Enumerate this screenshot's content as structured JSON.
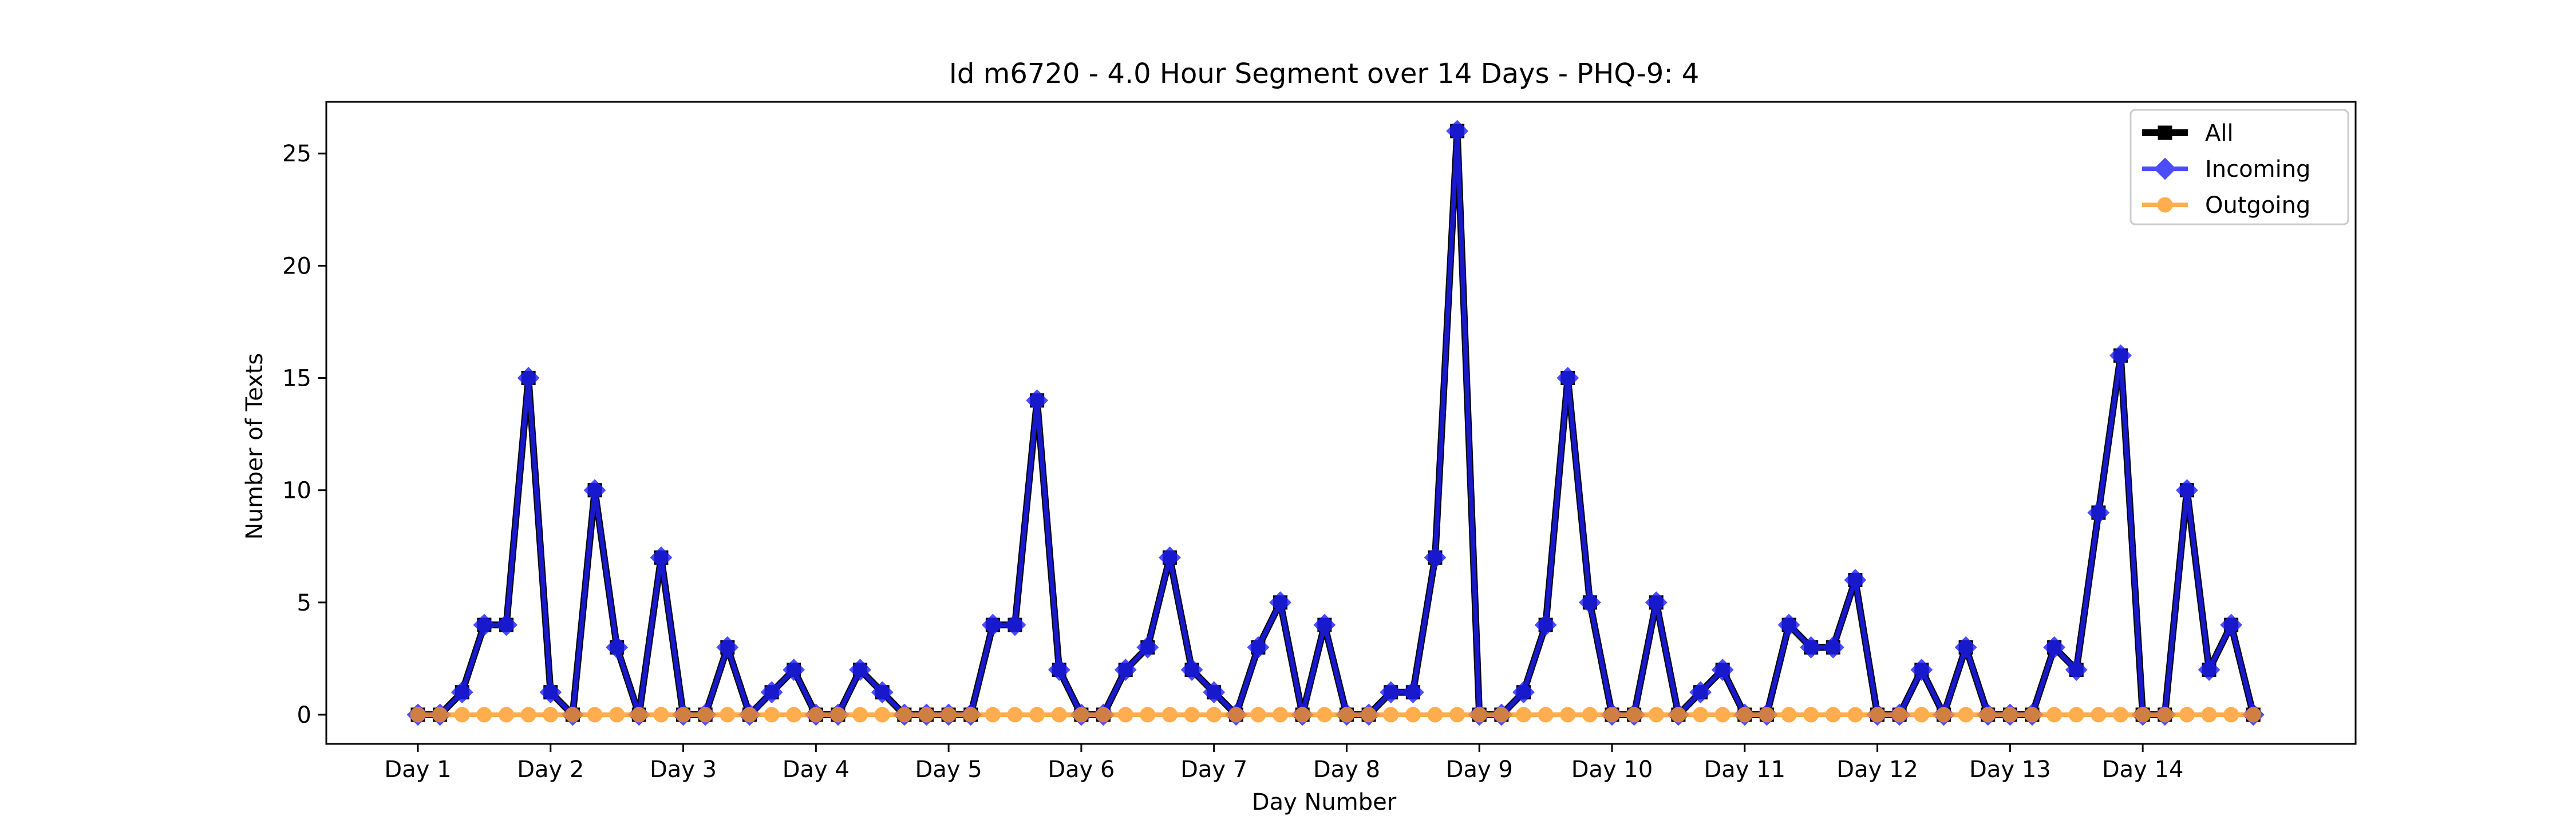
{
  "chart_data": {
    "type": "line",
    "title": "Id m6720 - 4.0 Hour Segment over 14 Days - PHQ-9: 4",
    "xlabel": "Day Number",
    "ylabel": "Number of Texts",
    "x_tick_labels": [
      "Day 1",
      "Day 2",
      "Day 3",
      "Day 4",
      "Day 5",
      "Day 6",
      "Day 7",
      "Day 8",
      "Day 9",
      "Day 10",
      "Day 11",
      "Day 12",
      "Day 13",
      "Day 14"
    ],
    "segments_per_day": 6,
    "ylim": [
      -1.3,
      27.3
    ],
    "yticks": [
      0,
      5,
      10,
      15,
      20,
      25
    ],
    "grid": false,
    "legend_position": "top-right",
    "series": [
      {
        "name": "All",
        "color": "#000000",
        "marker": "square",
        "values": [
          0,
          0,
          1,
          4,
          4,
          15,
          1,
          0,
          10,
          3,
          0,
          7,
          0,
          0,
          3,
          0,
          1,
          2,
          0,
          0,
          2,
          1,
          0,
          0,
          0,
          0,
          4,
          4,
          14,
          2,
          0,
          0,
          2,
          3,
          7,
          2,
          1,
          0,
          3,
          5,
          0,
          4,
          0,
          0,
          1,
          1,
          7,
          26,
          0,
          0,
          1,
          4,
          15,
          5,
          0,
          0,
          5,
          0,
          1,
          2,
          0,
          0,
          4,
          3,
          3,
          6,
          0,
          0,
          2,
          0,
          3,
          0,
          0,
          0,
          3,
          2,
          9,
          16,
          0,
          0,
          10,
          2,
          4,
          0
        ]
      },
      {
        "name": "Incoming",
        "color": "#1f1fff",
        "marker": "diamond",
        "values": [
          0,
          0,
          1,
          4,
          4,
          15,
          1,
          0,
          10,
          3,
          0,
          7,
          0,
          0,
          3,
          0,
          1,
          2,
          0,
          0,
          2,
          1,
          0,
          0,
          0,
          0,
          4,
          4,
          14,
          2,
          0,
          0,
          2,
          3,
          7,
          2,
          1,
          0,
          3,
          5,
          0,
          4,
          0,
          0,
          1,
          1,
          7,
          26,
          0,
          0,
          1,
          4,
          15,
          5,
          0,
          0,
          5,
          0,
          1,
          2,
          0,
          0,
          4,
          3,
          3,
          6,
          0,
          0,
          2,
          0,
          3,
          0,
          0,
          0,
          3,
          2,
          9,
          16,
          0,
          0,
          10,
          2,
          4,
          0
        ]
      },
      {
        "name": "Outgoing",
        "color": "#ff9922",
        "marker": "circle",
        "values": [
          0,
          0,
          0,
          0,
          0,
          0,
          0,
          0,
          0,
          0,
          0,
          0,
          0,
          0,
          0,
          0,
          0,
          0,
          0,
          0,
          0,
          0,
          0,
          0,
          0,
          0,
          0,
          0,
          0,
          0,
          0,
          0,
          0,
          0,
          0,
          0,
          0,
          0,
          0,
          0,
          0,
          0,
          0,
          0,
          0,
          0,
          0,
          0,
          0,
          0,
          0,
          0,
          0,
          0,
          0,
          0,
          0,
          0,
          0,
          0,
          0,
          0,
          0,
          0,
          0,
          0,
          0,
          0,
          0,
          0,
          0,
          0,
          0,
          0,
          0,
          0,
          0,
          0,
          0,
          0,
          0,
          0,
          0,
          0
        ]
      }
    ]
  }
}
